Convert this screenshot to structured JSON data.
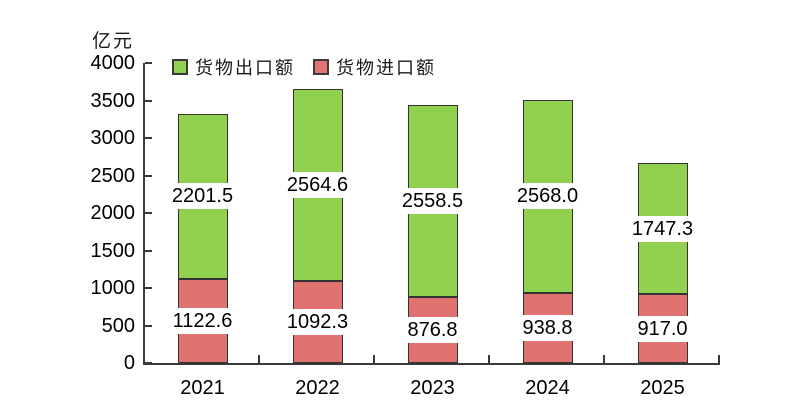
{
  "unit_label": "亿元",
  "chart_data": {
    "type": "bar",
    "stacked": true,
    "title": "",
    "ylabel": "亿元",
    "xlabel": "",
    "categories": [
      "2021",
      "2022",
      "2023",
      "2024",
      "2025"
    ],
    "series": [
      {
        "name": "货物进口额",
        "color": "#E0736F",
        "values": [
          1122.6,
          1092.3,
          876.8,
          938.8,
          917.0
        ],
        "labels": [
          "1122.6",
          "1092.3",
          "876.8",
          "938.8",
          "917.0"
        ]
      },
      {
        "name": "货物出口额",
        "color": "#92D050",
        "values": [
          2201.5,
          2564.6,
          2558.5,
          2568.0,
          1747.3
        ],
        "labels": [
          "2201.5",
          "2564.6",
          "2558.5",
          "2568.0",
          "1747.3"
        ]
      }
    ],
    "ylim": [
      0,
      4000
    ],
    "ytick_interval": 500,
    "grid": false,
    "legend_position": "top-inside",
    "axis_color": "#3a3a3a",
    "bar_border_color": "#333333",
    "data_label_bg": "#ffffff",
    "data_label_color": "#000000"
  }
}
